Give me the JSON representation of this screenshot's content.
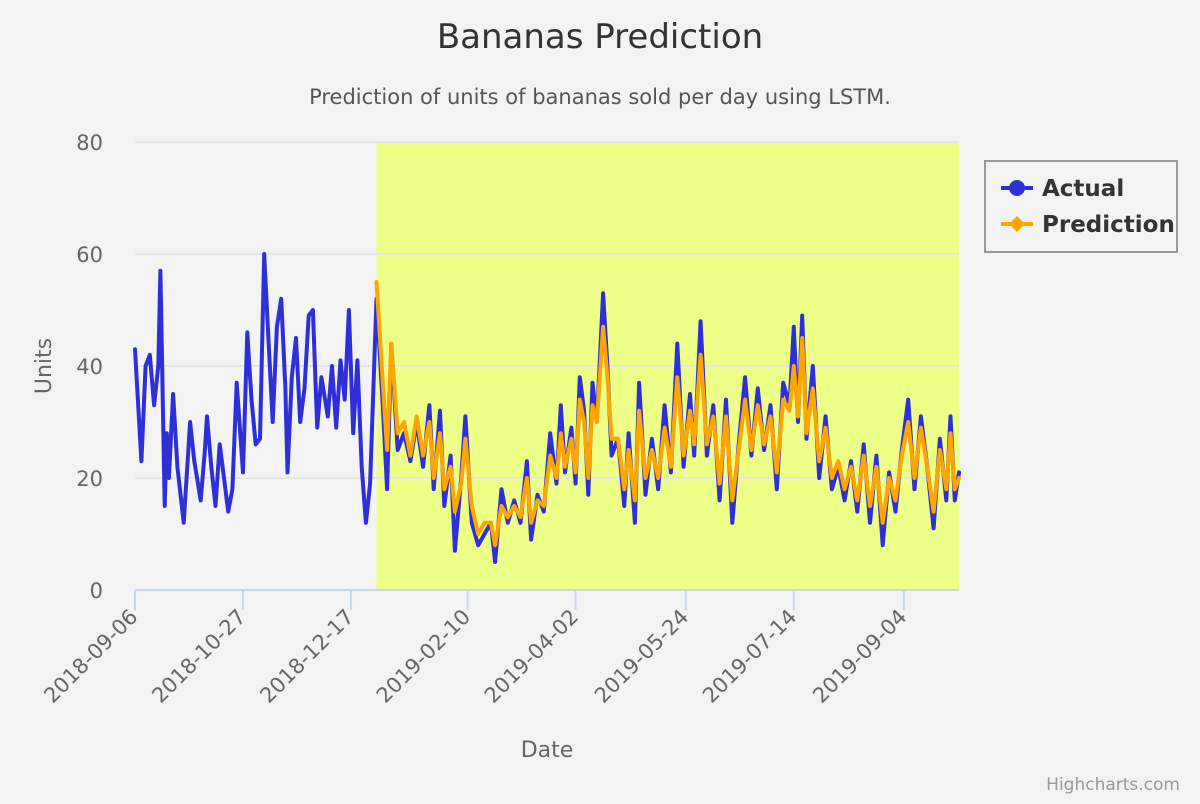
{
  "chart_data": {
    "type": "line",
    "title": "Bananas Prediction",
    "subtitle": "Prediction of units of bananas sold per day using LSTM.",
    "xlabel": "Date",
    "ylabel": "Units",
    "credits": "Highcharts.com",
    "x_tick_labels": [
      "2018-09-06",
      "2018-10-27",
      "2018-12-17",
      "2019-02-10",
      "2019-04-02",
      "2019-05-24",
      "2019-07-14",
      "2019-09-04"
    ],
    "xlim": [
      "2018-09-06",
      "2019-09-30"
    ],
    "y_ticks": [
      0,
      20,
      40,
      60,
      80
    ],
    "ylim": [
      0,
      80
    ],
    "grid": true,
    "legend_position": "right",
    "highlight_band": {
      "from": "2018-12-29",
      "to": "2019-09-30",
      "color": "#eeff88"
    },
    "colors": {
      "actual": "#2f2fd8",
      "prediction": "#ffa500",
      "background": "#f3f3f3"
    },
    "series": [
      {
        "name": "Actual",
        "color": "#2f2fd8",
        "points": [
          [
            "2018-09-06",
            43
          ],
          [
            "2018-09-09",
            23
          ],
          [
            "2018-09-11",
            40
          ],
          [
            "2018-09-13",
            42
          ],
          [
            "2018-09-15",
            33
          ],
          [
            "2018-09-17",
            40
          ],
          [
            "2018-09-18",
            57
          ],
          [
            "2018-09-20",
            15
          ],
          [
            "2018-09-21",
            28
          ],
          [
            "2018-09-22",
            20
          ],
          [
            "2018-09-24",
            35
          ],
          [
            "2018-09-26",
            22
          ],
          [
            "2018-09-29",
            12
          ],
          [
            "2018-10-01",
            24
          ],
          [
            "2018-10-02",
            30
          ],
          [
            "2018-10-04",
            23
          ],
          [
            "2018-10-07",
            16
          ],
          [
            "2018-10-09",
            25
          ],
          [
            "2018-10-10",
            31
          ],
          [
            "2018-10-12",
            22
          ],
          [
            "2018-10-14",
            15
          ],
          [
            "2018-10-16",
            26
          ],
          [
            "2018-10-18",
            20
          ],
          [
            "2018-10-20",
            14
          ],
          [
            "2018-10-22",
            18
          ],
          [
            "2018-10-24",
            37
          ],
          [
            "2018-10-27",
            21
          ],
          [
            "2018-10-29",
            46
          ],
          [
            "2018-10-31",
            34
          ],
          [
            "2018-11-02",
            26
          ],
          [
            "2018-11-04",
            27
          ],
          [
            "2018-11-06",
            60
          ],
          [
            "2018-11-08",
            45
          ],
          [
            "2018-11-10",
            30
          ],
          [
            "2018-11-12",
            47
          ],
          [
            "2018-11-14",
            52
          ],
          [
            "2018-11-16",
            36
          ],
          [
            "2018-11-17",
            21
          ],
          [
            "2018-11-19",
            38
          ],
          [
            "2018-11-21",
            45
          ],
          [
            "2018-11-23",
            30
          ],
          [
            "2018-11-25",
            36
          ],
          [
            "2018-11-27",
            49
          ],
          [
            "2018-11-29",
            50
          ],
          [
            "2018-12-01",
            29
          ],
          [
            "2018-12-03",
            38
          ],
          [
            "2018-12-06",
            31
          ],
          [
            "2018-12-08",
            40
          ],
          [
            "2018-12-10",
            29
          ],
          [
            "2018-12-12",
            41
          ],
          [
            "2018-12-14",
            34
          ],
          [
            "2018-12-16",
            50
          ],
          [
            "2018-12-18",
            28
          ],
          [
            "2018-12-20",
            41
          ],
          [
            "2018-12-22",
            22
          ],
          [
            "2018-12-24",
            12
          ],
          [
            "2018-12-26",
            19
          ],
          [
            "2018-12-29",
            52
          ],
          [
            "2019-01-01",
            33
          ],
          [
            "2019-01-03",
            18
          ],
          [
            "2019-01-05",
            44
          ],
          [
            "2019-01-08",
            25
          ],
          [
            "2019-01-11",
            28
          ],
          [
            "2019-01-14",
            23
          ],
          [
            "2019-01-17",
            30
          ],
          [
            "2019-01-20",
            22
          ],
          [
            "2019-01-23",
            33
          ],
          [
            "2019-01-25",
            18
          ],
          [
            "2019-01-28",
            32
          ],
          [
            "2019-01-30",
            15
          ],
          [
            "2019-02-02",
            24
          ],
          [
            "2019-02-04",
            7
          ],
          [
            "2019-02-07",
            20
          ],
          [
            "2019-02-09",
            31
          ],
          [
            "2019-02-12",
            12
          ],
          [
            "2019-02-15",
            8
          ],
          [
            "2019-02-18",
            10
          ],
          [
            "2019-02-21",
            12
          ],
          [
            "2019-02-23",
            5
          ],
          [
            "2019-02-26",
            18
          ],
          [
            "2019-03-01",
            12
          ],
          [
            "2019-03-04",
            16
          ],
          [
            "2019-03-07",
            12
          ],
          [
            "2019-03-10",
            23
          ],
          [
            "2019-03-12",
            9
          ],
          [
            "2019-03-15",
            17
          ],
          [
            "2019-03-18",
            14
          ],
          [
            "2019-03-21",
            28
          ],
          [
            "2019-03-24",
            19
          ],
          [
            "2019-03-26",
            33
          ],
          [
            "2019-03-28",
            21
          ],
          [
            "2019-03-31",
            29
          ],
          [
            "2019-04-02",
            19
          ],
          [
            "2019-04-04",
            38
          ],
          [
            "2019-04-06",
            32
          ],
          [
            "2019-04-08",
            17
          ],
          [
            "2019-04-10",
            37
          ],
          [
            "2019-04-12",
            30
          ],
          [
            "2019-04-15",
            53
          ],
          [
            "2019-04-17",
            40
          ],
          [
            "2019-04-19",
            24
          ],
          [
            "2019-04-22",
            27
          ],
          [
            "2019-04-25",
            15
          ],
          [
            "2019-04-27",
            28
          ],
          [
            "2019-04-30",
            12
          ],
          [
            "2019-05-02",
            37
          ],
          [
            "2019-05-05",
            17
          ],
          [
            "2019-05-08",
            27
          ],
          [
            "2019-05-11",
            18
          ],
          [
            "2019-05-14",
            33
          ],
          [
            "2019-05-17",
            21
          ],
          [
            "2019-05-20",
            44
          ],
          [
            "2019-05-23",
            22
          ],
          [
            "2019-05-26",
            35
          ],
          [
            "2019-05-28",
            24
          ],
          [
            "2019-05-31",
            48
          ],
          [
            "2019-06-03",
            24
          ],
          [
            "2019-06-06",
            33
          ],
          [
            "2019-06-09",
            16
          ],
          [
            "2019-06-12",
            34
          ],
          [
            "2019-06-15",
            12
          ],
          [
            "2019-06-18",
            26
          ],
          [
            "2019-06-21",
            38
          ],
          [
            "2019-06-24",
            24
          ],
          [
            "2019-06-27",
            36
          ],
          [
            "2019-06-30",
            25
          ],
          [
            "2019-07-03",
            33
          ],
          [
            "2019-07-06",
            18
          ],
          [
            "2019-07-09",
            37
          ],
          [
            "2019-07-12",
            33
          ],
          [
            "2019-07-14",
            47
          ],
          [
            "2019-07-16",
            30
          ],
          [
            "2019-07-18",
            49
          ],
          [
            "2019-07-20",
            27
          ],
          [
            "2019-07-23",
            40
          ],
          [
            "2019-07-26",
            20
          ],
          [
            "2019-07-29",
            31
          ],
          [
            "2019-08-01",
            18
          ],
          [
            "2019-08-04",
            22
          ],
          [
            "2019-08-07",
            16
          ],
          [
            "2019-08-10",
            23
          ],
          [
            "2019-08-13",
            14
          ],
          [
            "2019-08-16",
            26
          ],
          [
            "2019-08-19",
            12
          ],
          [
            "2019-08-22",
            24
          ],
          [
            "2019-08-25",
            8
          ],
          [
            "2019-08-28",
            21
          ],
          [
            "2019-08-31",
            14
          ],
          [
            "2019-09-03",
            25
          ],
          [
            "2019-09-06",
            34
          ],
          [
            "2019-09-09",
            18
          ],
          [
            "2019-09-12",
            31
          ],
          [
            "2019-09-15",
            22
          ],
          [
            "2019-09-18",
            11
          ],
          [
            "2019-09-21",
            27
          ],
          [
            "2019-09-24",
            16
          ],
          [
            "2019-09-26",
            31
          ],
          [
            "2019-09-28",
            16
          ],
          [
            "2019-09-30",
            21
          ]
        ]
      },
      {
        "name": "Prediction",
        "color": "#ffa500",
        "points": [
          [
            "2018-12-29",
            55
          ],
          [
            "2019-01-01",
            37
          ],
          [
            "2019-01-03",
            25
          ],
          [
            "2019-01-05",
            44
          ],
          [
            "2019-01-08",
            28
          ],
          [
            "2019-01-11",
            30
          ],
          [
            "2019-01-14",
            24
          ],
          [
            "2019-01-17",
            31
          ],
          [
            "2019-01-20",
            24
          ],
          [
            "2019-01-23",
            30
          ],
          [
            "2019-01-25",
            20
          ],
          [
            "2019-01-28",
            28
          ],
          [
            "2019-01-30",
            18
          ],
          [
            "2019-02-02",
            22
          ],
          [
            "2019-02-04",
            14
          ],
          [
            "2019-02-07",
            19
          ],
          [
            "2019-02-09",
            27
          ],
          [
            "2019-02-12",
            15
          ],
          [
            "2019-02-15",
            10
          ],
          [
            "2019-02-18",
            12
          ],
          [
            "2019-02-21",
            12
          ],
          [
            "2019-02-23",
            8
          ],
          [
            "2019-02-26",
            15
          ],
          [
            "2019-03-01",
            13
          ],
          [
            "2019-03-04",
            15
          ],
          [
            "2019-03-07",
            13
          ],
          [
            "2019-03-10",
            20
          ],
          [
            "2019-03-12",
            12
          ],
          [
            "2019-03-15",
            16
          ],
          [
            "2019-03-18",
            15
          ],
          [
            "2019-03-21",
            24
          ],
          [
            "2019-03-24",
            20
          ],
          [
            "2019-03-26",
            28
          ],
          [
            "2019-03-28",
            22
          ],
          [
            "2019-03-31",
            27
          ],
          [
            "2019-04-02",
            21
          ],
          [
            "2019-04-04",
            34
          ],
          [
            "2019-04-06",
            30
          ],
          [
            "2019-04-08",
            20
          ],
          [
            "2019-04-10",
            33
          ],
          [
            "2019-04-12",
            30
          ],
          [
            "2019-04-15",
            47
          ],
          [
            "2019-04-17",
            38
          ],
          [
            "2019-04-19",
            27
          ],
          [
            "2019-04-22",
            27
          ],
          [
            "2019-04-25",
            18
          ],
          [
            "2019-04-27",
            25
          ],
          [
            "2019-04-30",
            16
          ],
          [
            "2019-05-02",
            32
          ],
          [
            "2019-05-05",
            20
          ],
          [
            "2019-05-08",
            25
          ],
          [
            "2019-05-11",
            20
          ],
          [
            "2019-05-14",
            29
          ],
          [
            "2019-05-17",
            22
          ],
          [
            "2019-05-20",
            38
          ],
          [
            "2019-05-23",
            24
          ],
          [
            "2019-05-26",
            32
          ],
          [
            "2019-05-28",
            26
          ],
          [
            "2019-05-31",
            42
          ],
          [
            "2019-06-03",
            26
          ],
          [
            "2019-06-06",
            31
          ],
          [
            "2019-06-09",
            19
          ],
          [
            "2019-06-12",
            31
          ],
          [
            "2019-06-15",
            16
          ],
          [
            "2019-06-18",
            25
          ],
          [
            "2019-06-21",
            34
          ],
          [
            "2019-06-24",
            25
          ],
          [
            "2019-06-27",
            33
          ],
          [
            "2019-06-30",
            26
          ],
          [
            "2019-07-03",
            31
          ],
          [
            "2019-07-06",
            21
          ],
          [
            "2019-07-09",
            34
          ],
          [
            "2019-07-12",
            32
          ],
          [
            "2019-07-14",
            40
          ],
          [
            "2019-07-16",
            31
          ],
          [
            "2019-07-18",
            45
          ],
          [
            "2019-07-20",
            28
          ],
          [
            "2019-07-23",
            36
          ],
          [
            "2019-07-26",
            23
          ],
          [
            "2019-07-29",
            29
          ],
          [
            "2019-08-01",
            20
          ],
          [
            "2019-08-04",
            23
          ],
          [
            "2019-08-07",
            18
          ],
          [
            "2019-08-10",
            22
          ],
          [
            "2019-08-13",
            16
          ],
          [
            "2019-08-16",
            24
          ],
          [
            "2019-08-19",
            15
          ],
          [
            "2019-08-22",
            22
          ],
          [
            "2019-08-25",
            12
          ],
          [
            "2019-08-28",
            20
          ],
          [
            "2019-08-31",
            16
          ],
          [
            "2019-09-03",
            24
          ],
          [
            "2019-09-06",
            30
          ],
          [
            "2019-09-09",
            20
          ],
          [
            "2019-09-12",
            29
          ],
          [
            "2019-09-15",
            22
          ],
          [
            "2019-09-18",
            14
          ],
          [
            "2019-09-21",
            25
          ],
          [
            "2019-09-24",
            18
          ],
          [
            "2019-09-26",
            28
          ],
          [
            "2019-09-28",
            18
          ],
          [
            "2019-09-30",
            20
          ]
        ]
      }
    ]
  }
}
